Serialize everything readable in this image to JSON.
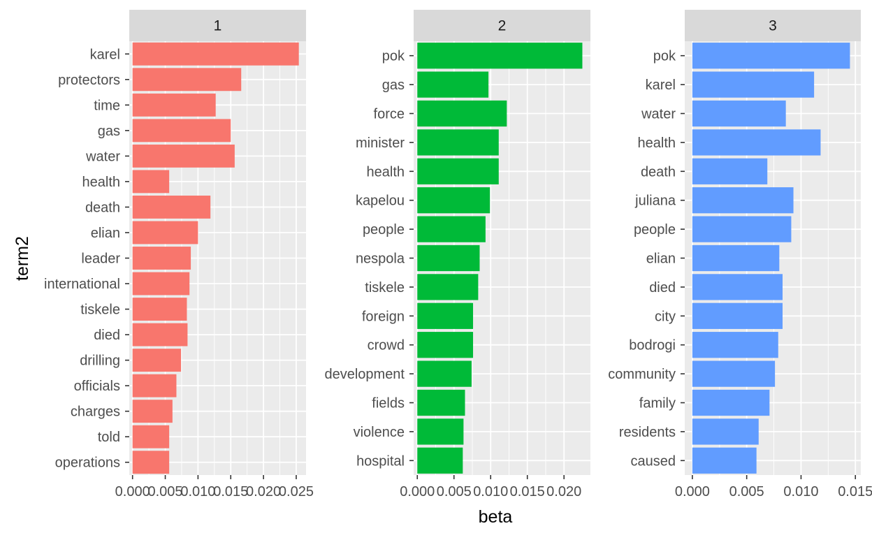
{
  "chart_data": {
    "type": "bar",
    "orientation": "horizontal",
    "faceted": true,
    "xlabel": "beta",
    "ylabel": "term2",
    "grid": true,
    "legend": "none",
    "panels": [
      {
        "strip": "1",
        "color": "#F8766D",
        "xlim": [
          -0.0005,
          0.0265
        ],
        "x_ticks": [
          0,
          0.005,
          0.01,
          0.015,
          0.02,
          0.025
        ],
        "x_tick_labels": [
          "0.000",
          "0.005",
          "0.010",
          "0.015",
          "0.020",
          "0.025"
        ],
        "terms": [
          "karel",
          "protectors",
          "time",
          "gas",
          "water",
          "health",
          "death",
          "elian",
          "leader",
          "international",
          "tiskele",
          "died",
          "drilling",
          "officials",
          "charges",
          "told",
          "operations"
        ],
        "values": [
          0.0254,
          0.0166,
          0.0127,
          0.015,
          0.0156,
          0.0056,
          0.0119,
          0.01,
          0.0089,
          0.0087,
          0.0083,
          0.0084,
          0.0074,
          0.0067,
          0.0061,
          0.0056,
          0.0056
        ]
      },
      {
        "strip": "2",
        "color": "#00BA38",
        "xlim": [
          -0.0005,
          0.0236
        ],
        "x_ticks": [
          0,
          0.005,
          0.01,
          0.015,
          0.02
        ],
        "x_tick_labels": [
          "0.000",
          "0.005",
          "0.010",
          "0.015",
          "0.020"
        ],
        "terms": [
          "pok",
          "gas",
          "force",
          "minister",
          "health",
          "kapelou",
          "people",
          "nespola",
          "tiskele",
          "foreign",
          "crowd",
          "development",
          "fields",
          "violence",
          "hospital"
        ],
        "values": [
          0.0225,
          0.0097,
          0.0122,
          0.0111,
          0.0111,
          0.0099,
          0.0093,
          0.0085,
          0.0083,
          0.0076,
          0.0076,
          0.0074,
          0.0065,
          0.0063,
          0.0062
        ]
      },
      {
        "strip": "3",
        "color": "#619CFF",
        "xlim": [
          -0.0007,
          0.0155
        ],
        "x_ticks": [
          0,
          0.005,
          0.01,
          0.015
        ],
        "x_tick_labels": [
          "0.000",
          "0.005",
          "0.010",
          "0.015"
        ],
        "terms": [
          "pok",
          "karel",
          "water",
          "health",
          "death",
          "juliana",
          "people",
          "elian",
          "died",
          "city",
          "bodrogi",
          "community",
          "family",
          "residents",
          "caused"
        ],
        "values": [
          0.0145,
          0.0112,
          0.0086,
          0.0118,
          0.0069,
          0.0093,
          0.0091,
          0.008,
          0.0083,
          0.0083,
          0.0079,
          0.0076,
          0.0071,
          0.0061,
          0.0059
        ]
      }
    ]
  }
}
